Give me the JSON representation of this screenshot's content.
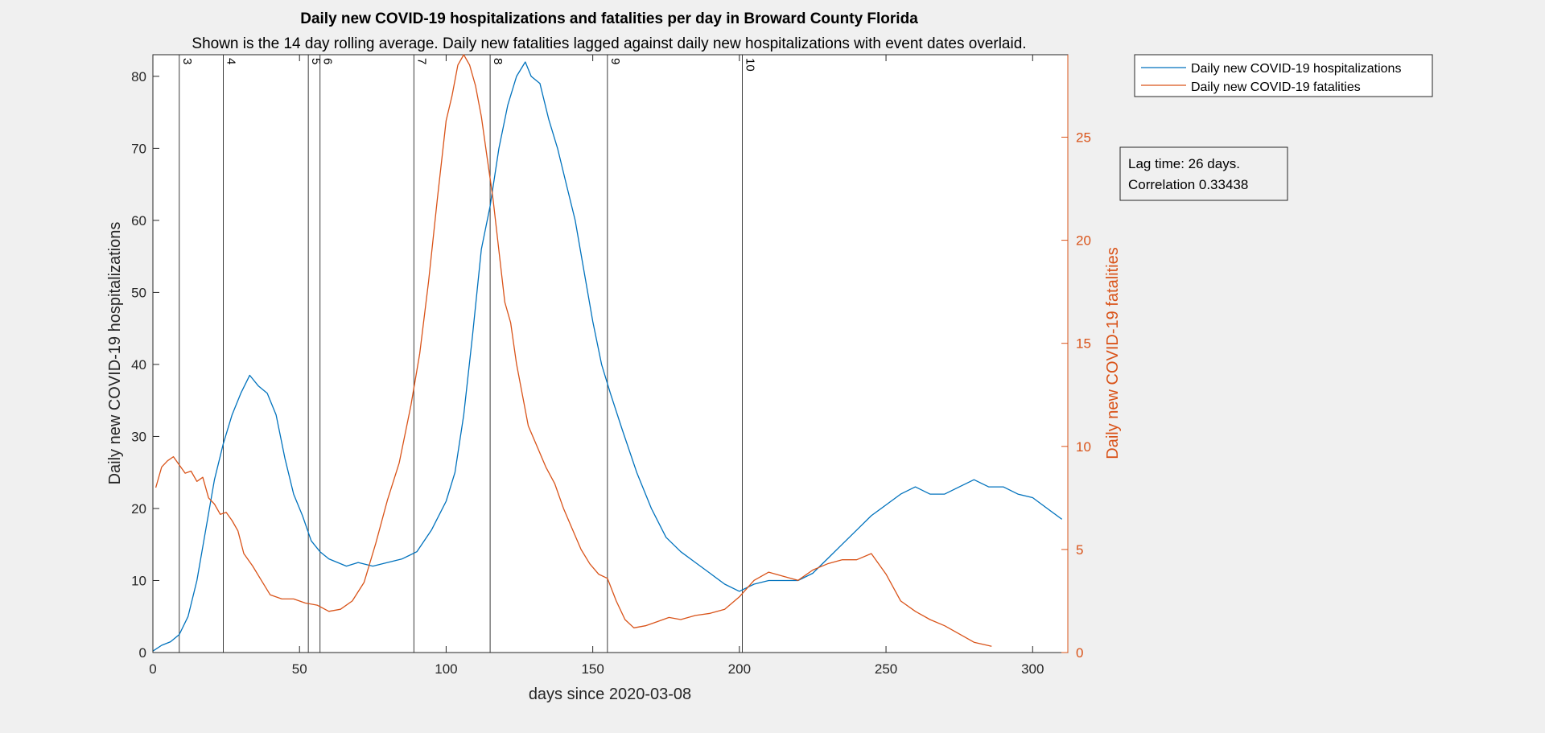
{
  "chart_data": {
    "type": "line",
    "title": "Daily new COVID-19 hospitalizations and fatalities per day in Broward County Florida",
    "subtitle": "Shown is the 14 day rolling average. Daily new fatalities lagged against daily new hospitalizations with event dates overlaid.",
    "xlabel": "days since 2020-03-08",
    "ylabel_left": "Daily new COVID-19 hospitalizations",
    "ylabel_right": "Daily new COVID-19 fatalities",
    "xlim": [
      0,
      312
    ],
    "ylim_left": [
      0,
      83
    ],
    "ylim_right": [
      0,
      29
    ],
    "xticks": [
      0,
      50,
      100,
      150,
      200,
      250,
      300
    ],
    "yticks_left": [
      0,
      10,
      20,
      30,
      40,
      50,
      60,
      70,
      80
    ],
    "yticks_right": [
      0,
      5,
      10,
      15,
      20,
      25
    ],
    "colors": {
      "hospitalizations": "#0072BD",
      "fatalities": "#D95319",
      "events": "#262626"
    },
    "legend_position": "outside-top-right",
    "series": [
      {
        "name": "Daily new COVID-19 hospitalizations",
        "axis": "left",
        "x": [
          0,
          3,
          6,
          9,
          12,
          15,
          18,
          21,
          24,
          27,
          30,
          33,
          36,
          39,
          42,
          45,
          48,
          51,
          54,
          57,
          60,
          63,
          66,
          70,
          75,
          80,
          85,
          90,
          95,
          100,
          103,
          106,
          109,
          112,
          115,
          118,
          121,
          124,
          127,
          129,
          132,
          135,
          138,
          141,
          144,
          147,
          150,
          153,
          156,
          160,
          165,
          170,
          175,
          180,
          185,
          190,
          195,
          200,
          205,
          210,
          215,
          220,
          225,
          230,
          235,
          240,
          245,
          250,
          255,
          260,
          265,
          270,
          275,
          280,
          285,
          290,
          295,
          300,
          305,
          310
        ],
        "values": [
          0.2,
          1,
          1.5,
          2.5,
          5,
          10,
          17,
          24,
          29,
          33,
          36,
          38.5,
          37,
          36,
          33,
          27,
          22,
          19,
          15.5,
          14,
          13,
          12.5,
          12,
          12.5,
          12,
          12.5,
          13,
          14,
          17,
          21,
          25,
          33,
          44,
          56,
          62,
          70,
          76,
          80,
          82,
          80,
          79,
          74,
          70,
          65,
          60,
          53,
          46,
          40,
          36,
          31,
          25,
          20,
          16,
          14,
          12.5,
          11,
          9.5,
          8.5,
          9.5,
          10,
          10,
          10,
          11,
          13,
          15,
          17,
          19,
          20.5,
          22,
          23,
          22,
          22,
          23,
          24,
          23,
          23,
          22,
          21.5,
          20,
          18.5
        ]
      },
      {
        "name": "Daily new COVID-19 fatalities",
        "axis": "right",
        "x": [
          1,
          3,
          5,
          7,
          9,
          11,
          13,
          15,
          17,
          19,
          21,
          23,
          25,
          27,
          29,
          31,
          34,
          37,
          40,
          44,
          48,
          52,
          56,
          60,
          64,
          68,
          72,
          76,
          80,
          84,
          88,
          91,
          94,
          97,
          100,
          102,
          104,
          106,
          108,
          110,
          112,
          114,
          116,
          118,
          120,
          122,
          124,
          126,
          128,
          131,
          134,
          137,
          140,
          143,
          146,
          149,
          152,
          155,
          158,
          161,
          164,
          168,
          172,
          176,
          180,
          185,
          190,
          195,
          200,
          205,
          210,
          215,
          220,
          225,
          230,
          235,
          240,
          245,
          250,
          255,
          260,
          265,
          270,
          275,
          280,
          286
        ],
        "values": [
          8,
          9,
          9.3,
          9.5,
          9.1,
          8.7,
          8.8,
          8.3,
          8.5,
          7.5,
          7.2,
          6.7,
          6.8,
          6.4,
          5.9,
          4.8,
          4.2,
          3.5,
          2.8,
          2.6,
          2.6,
          2.4,
          2.3,
          2,
          2.1,
          2.5,
          3.4,
          5.3,
          7.4,
          9.2,
          12,
          14.5,
          18,
          22,
          25.8,
          27,
          28.5,
          29,
          28.5,
          27.5,
          26,
          24,
          22,
          19.5,
          17,
          16,
          14,
          12.5,
          11,
          10,
          9,
          8.2,
          7,
          6,
          5,
          4.3,
          3.8,
          3.6,
          2.5,
          1.6,
          1.2,
          1.3,
          1.5,
          1.7,
          1.6,
          1.8,
          1.9,
          2.1,
          2.7,
          3.5,
          3.9,
          3.7,
          3.5,
          4,
          4.3,
          4.5,
          4.5,
          4.8,
          3.8,
          2.5,
          2,
          1.6,
          1.3,
          0.9,
          0.5,
          0.3
        ]
      }
    ],
    "events": [
      {
        "label": "3",
        "x": 9
      },
      {
        "label": "4",
        "x": 24
      },
      {
        "label": "5",
        "x": 53
      },
      {
        "label": "6",
        "x": 57
      },
      {
        "label": "7",
        "x": 89
      },
      {
        "label": "8",
        "x": 115
      },
      {
        "label": "9",
        "x": 155
      },
      {
        "label": "10",
        "x": 201
      }
    ],
    "annotation": {
      "line1": "Lag time: 26 days.",
      "line2": "Correlation 0.33438"
    }
  }
}
